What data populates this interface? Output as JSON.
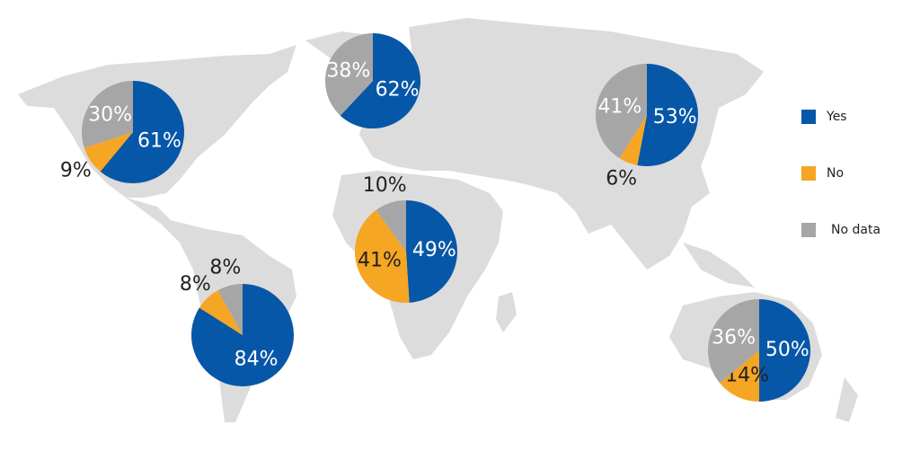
{
  "chart_data": {
    "type": "pie",
    "categories": [
      null,
      null,
      null,
      null,
      null,
      null
    ],
    "series": [
      {
        "name": "Yes",
        "color": "#0757a8",
        "values": [
          61,
          62,
          53,
          49,
          84,
          50
        ],
        "value_labels": [
          "61%",
          "62%",
          "53%",
          "49%",
          "84%",
          "50%"
        ]
      },
      {
        "name": "No",
        "color": "#f5a623",
        "values": [
          9,
          null,
          6,
          41,
          8,
          14
        ],
        "value_labels": [
          "9%",
          null,
          "6%",
          "41%",
          "8%",
          "14%"
        ]
      },
      {
        "name": "No data",
        "color": "#a6a6a6",
        "values": [
          30,
          38,
          41,
          10,
          8,
          36
        ],
        "value_labels": [
          "30%",
          "38%",
          "41%",
          "10%",
          "8%",
          "36%"
        ]
      }
    ]
  }
}
